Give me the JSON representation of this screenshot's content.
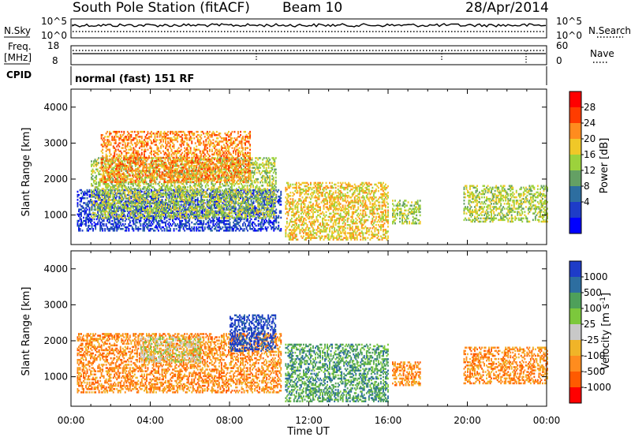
{
  "header": {
    "station": "South Pole Station (fitACF)",
    "beam": "Beam 10",
    "date": "28/Apr/2014"
  },
  "top_panels": {
    "nsky_label": "N.Sky",
    "nsearch_label": "N.Search",
    "noise_ticks": [
      "10^5",
      "10^0"
    ],
    "freq_label": "Freq.",
    "freq_unit": "[MHz]",
    "freq_ticks": [
      "18",
      "8"
    ],
    "nave_label": "Nave",
    "nave_ticks": [
      "60",
      "0"
    ],
    "cpid_label": "CPID",
    "cpid_text": "normal (fast) 151 RF"
  },
  "chart_data": [
    {
      "type": "heatmap",
      "name": "power",
      "ylabel": "Slant Range [km]",
      "yticks": [
        "4000",
        "3000",
        "2000",
        "1000"
      ],
      "ylim": [
        180,
        4500
      ],
      "xlim": [
        0,
        24
      ],
      "colorbar": {
        "label": "Power [dB]",
        "ticks": [
          "28",
          "24",
          "20",
          "16",
          "12",
          "8",
          "4"
        ],
        "colors": [
          "#ff0000",
          "#ff3c00",
          "#ff8c1e",
          "#f0c828",
          "#9cd23c",
          "#64a064",
          "#2d6ea0",
          "#1e3cc8",
          "#0000ff"
        ]
      },
      "echo_bands": [
        {
          "t0": 0.3,
          "t1": 10.6,
          "r0": 550,
          "r1": 1700,
          "level": 7
        },
        {
          "t0": 1.0,
          "t1": 10.3,
          "r0": 900,
          "r1": 2600,
          "level": 4
        },
        {
          "t0": 1.5,
          "t1": 9.0,
          "r0": 1900,
          "r1": 3300,
          "level": 2
        },
        {
          "t0": 10.8,
          "t1": 16.0,
          "r0": 300,
          "r1": 1900,
          "level": 3
        },
        {
          "t0": 16.2,
          "t1": 17.6,
          "r0": 750,
          "r1": 1400,
          "level": 4
        },
        {
          "t0": 19.8,
          "t1": 24.0,
          "r0": 800,
          "r1": 1800,
          "level": 4
        }
      ]
    },
    {
      "type": "heatmap",
      "name": "velocity",
      "ylabel": "Slant Range [km]",
      "yticks": [
        "4000",
        "3000",
        "2000",
        "1000"
      ],
      "ylim": [
        180,
        4500
      ],
      "xlim": [
        0,
        24
      ],
      "xticks": [
        "00:00",
        "04:00",
        "08:00",
        "12:00",
        "16:00",
        "20:00",
        "00:00"
      ],
      "xlabel": "Time UT",
      "colorbar": {
        "label": "Velocity [m s^-1]",
        "ticks": [
          "1000",
          "500",
          "100",
          "25",
          "-25",
          "-100",
          "-500",
          "-1000"
        ],
        "colors": [
          "#1e3cc8",
          "#2d6ea0",
          "#4ea05a",
          "#7cc83c",
          "#c8c8c8",
          "#f0b428",
          "#ff8c1e",
          "#ff5a00",
          "#ff0000"
        ]
      },
      "echo_bands": [
        {
          "t0": 0.3,
          "t1": 10.6,
          "r0": 550,
          "r1": 2200,
          "level": 6
        },
        {
          "t0": 3.5,
          "t1": 6.5,
          "r0": 1400,
          "r1": 2100,
          "level": 4
        },
        {
          "t0": 8.0,
          "t1": 10.3,
          "r0": 1700,
          "r1": 2700,
          "level": 0
        },
        {
          "t0": 10.8,
          "t1": 16.0,
          "r0": 300,
          "r1": 1900,
          "level": 2
        },
        {
          "t0": 16.2,
          "t1": 17.6,
          "r0": 750,
          "r1": 1400,
          "level": 6
        },
        {
          "t0": 19.8,
          "t1": 24.0,
          "r0": 800,
          "r1": 1800,
          "level": 6
        }
      ]
    }
  ]
}
